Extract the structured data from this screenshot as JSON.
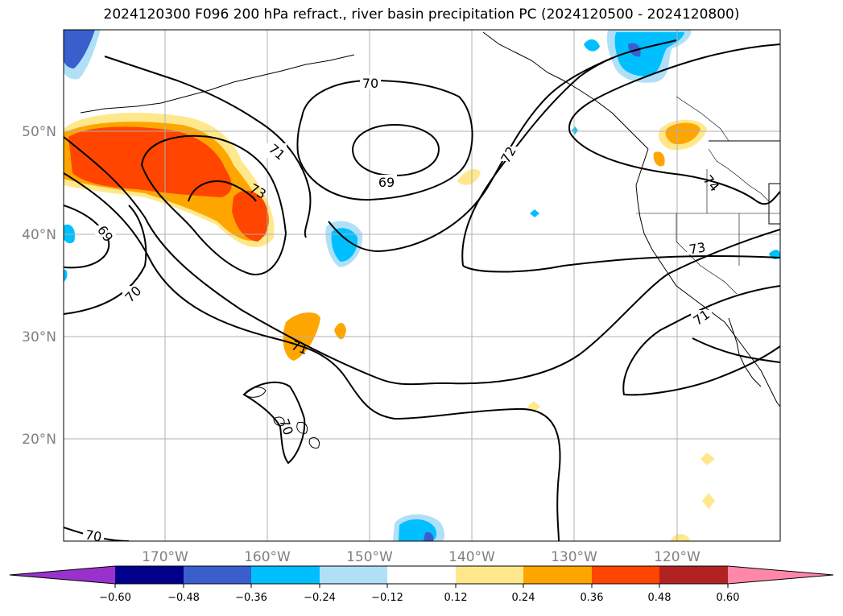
{
  "title": "2024120300 F096 200 hPa refract., river basin precipitation PC (2024120500 - 2024120800)",
  "map": {
    "lat_labels": [
      "50°N",
      "40°N",
      "30°N",
      "20°N"
    ],
    "lon_labels": [
      "170°W",
      "160°W",
      "150°W",
      "140°W",
      "130°W",
      "120°W"
    ],
    "contour_labels": [
      "70",
      "69",
      "71",
      "73",
      "72",
      "74",
      "73",
      "71",
      "69",
      "70",
      "71",
      "70",
      "70"
    ],
    "positive_colors": [
      "#ffe88c",
      "#ffa500",
      "#ff4500"
    ],
    "negative_colors": [
      "#b0e0f8",
      "#00bfff",
      "#3a5fcd"
    ]
  },
  "colorbar": {
    "ticks": [
      "−0.60",
      "−0.48",
      "−0.36",
      "−0.24",
      "−0.12",
      "0.12",
      "0.24",
      "0.36",
      "0.48",
      "0.60"
    ],
    "colors": [
      "#9932cc",
      "#00008b",
      "#3a5fcd",
      "#00bfff",
      "#b0e0f8",
      "#ffffff",
      "#ffe88c",
      "#ffa500",
      "#ff4500",
      "#b22222",
      "#ff88aa"
    ]
  }
}
